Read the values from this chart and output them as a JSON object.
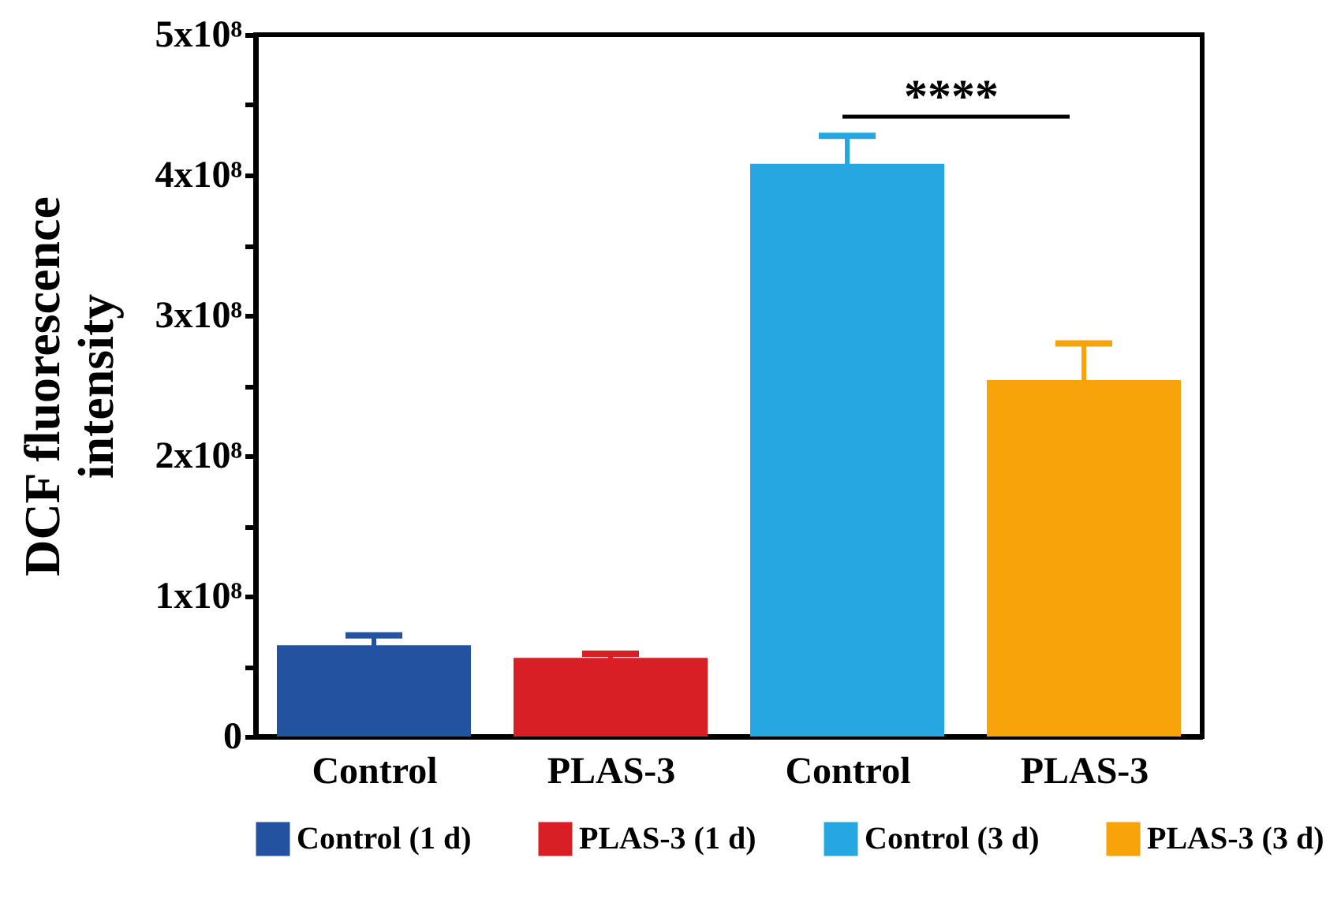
{
  "chart_data": {
    "type": "bar",
    "ylabel": "DCF fluorescence intensity",
    "categories": [
      "Control",
      "PLAS-3",
      "Control",
      "PLAS-3"
    ],
    "series": [
      {
        "name": "Control (1 d)",
        "color": "#2352a0",
        "values": [
          65000000,
          null,
          null,
          null
        ],
        "errors": [
          7000000,
          null,
          null,
          null
        ]
      },
      {
        "name": "PLAS-3 (1 d)",
        "color": "#d91f26",
        "values": [
          null,
          56000000,
          null,
          null
        ],
        "errors": [
          null,
          3000000,
          null,
          null
        ]
      },
      {
        "name": "Control (3 d)",
        "color": "#27a7e1",
        "values": [
          null,
          null,
          408000000,
          null
        ],
        "errors": [
          null,
          null,
          20000000,
          null
        ]
      },
      {
        "name": "PLAS-3 (3 d)",
        "color": "#f9a30b",
        "values": [
          null,
          null,
          null,
          254000000
        ],
        "errors": [
          null,
          null,
          null,
          26000000
        ]
      }
    ],
    "ylim": [
      0,
      500000000
    ],
    "yticks": [
      {
        "value": 0,
        "label": "0"
      },
      {
        "value": 50000000,
        "label": null
      },
      {
        "value": 100000000,
        "label": "1x10⁸"
      },
      {
        "value": 150000000,
        "label": null
      },
      {
        "value": 200000000,
        "label": "2x10⁸"
      },
      {
        "value": 250000000,
        "label": null
      },
      {
        "value": 300000000,
        "label": "3x10⁸"
      },
      {
        "value": 350000000,
        "label": null
      },
      {
        "value": 400000000,
        "label": "4x10⁸"
      },
      {
        "value": 450000000,
        "label": null
      },
      {
        "value": 500000000,
        "label": "5x10⁸"
      }
    ],
    "annotations": [
      "****"
    ],
    "legend": "bottom",
    "grid": false
  }
}
